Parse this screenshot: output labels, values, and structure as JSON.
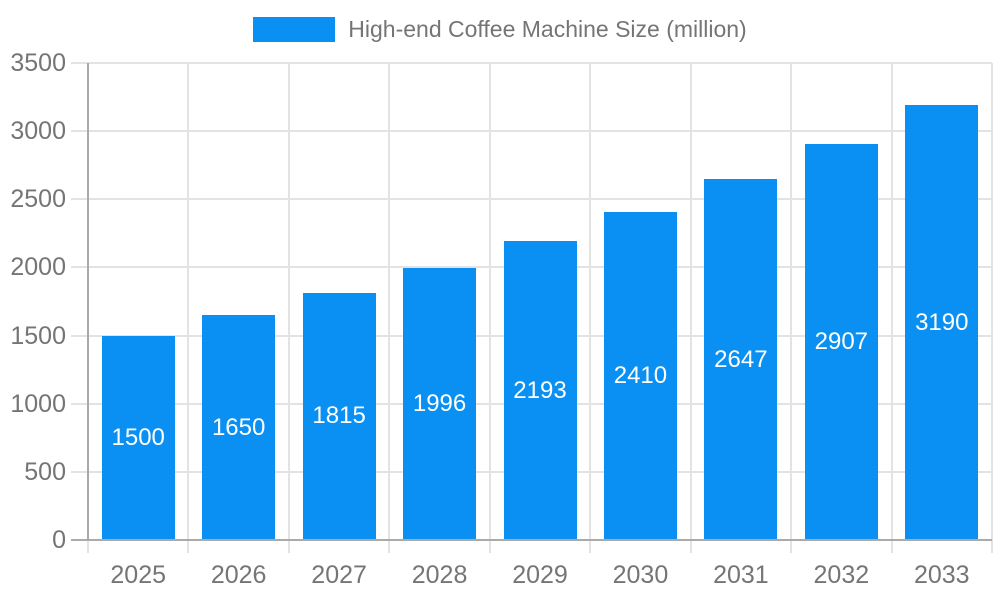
{
  "legend": {
    "label": "High-end Coffee Machine Size (million)"
  },
  "chart_data": {
    "type": "bar",
    "title": "High-end Coffee Machine Size (million)",
    "series_name": "High-end Coffee Machine Size (million)",
    "categories": [
      "2025",
      "2026",
      "2027",
      "2028",
      "2029",
      "2030",
      "2031",
      "2032",
      "2033"
    ],
    "values": [
      1500,
      1650,
      1815,
      1996,
      2193,
      2410,
      2647,
      2907,
      3190
    ],
    "xlabel": "",
    "ylabel": "",
    "ylim": [
      0,
      3500
    ],
    "yticks": [
      0,
      500,
      1000,
      1500,
      2000,
      2500,
      3000,
      3500
    ],
    "grid": true,
    "legend_position": "top-center",
    "value_label_position": "inside-center",
    "colors": {
      "bar": "#0A90F2",
      "bar_value_text": "#FFFFFF",
      "axis_text": "#757575",
      "gridline": "#E3E3E3",
      "axis_line": "#AAAAAA",
      "background": "#FFFFFF"
    }
  }
}
